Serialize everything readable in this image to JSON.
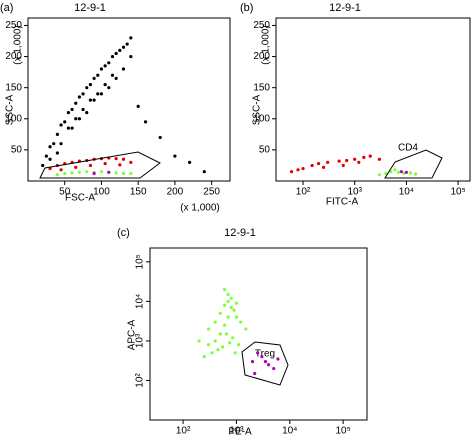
{
  "chart_data": [
    {
      "type": "scatter",
      "panel": "(a)",
      "title": "12-9-1",
      "xlabel": "FSC-A",
      "ylabel": "SSC-A",
      "xunit": "(x 1,000)",
      "yunit": "(x 1,000)",
      "xscale": "linear",
      "yscale": "linear",
      "xlim": [
        0,
        275
      ],
      "ylim": [
        0,
        262
      ],
      "xticks": [
        50,
        100,
        150,
        200,
        250
      ],
      "yticks": [
        50,
        100,
        150,
        200,
        250
      ],
      "series": [
        {
          "color": "#000000",
          "x": [
            20,
            25,
            30,
            35,
            40,
            45,
            50,
            55,
            60,
            65,
            70,
            75,
            80,
            85,
            90,
            95,
            100,
            105,
            110,
            115,
            120,
            125,
            130,
            135,
            140,
            60,
            70,
            80,
            90,
            100,
            110,
            120,
            45,
            55,
            65,
            75,
            85,
            95,
            105,
            115,
            150,
            160,
            180,
            200,
            220,
            240,
            30,
            40,
            130,
            140
          ],
          "values": [
            25,
            40,
            55,
            60,
            75,
            90,
            95,
            110,
            115,
            125,
            135,
            140,
            150,
            155,
            165,
            170,
            180,
            185,
            190,
            200,
            205,
            210,
            215,
            220,
            230,
            85,
            100,
            110,
            130,
            140,
            150,
            165,
            60,
            85,
            100,
            115,
            130,
            140,
            155,
            170,
            120,
            95,
            70,
            40,
            30,
            15,
            35,
            45,
            180,
            200
          ]
        },
        {
          "color": "#e00000",
          "x": [
            30,
            40,
            50,
            60,
            70,
            80,
            90,
            100,
            110,
            120,
            130,
            140,
            45,
            65,
            85,
            105,
            125
          ],
          "values": [
            20,
            25,
            28,
            30,
            32,
            33,
            35,
            36,
            37,
            36,
            35,
            30,
            18,
            22,
            25,
            28,
            26
          ]
        },
        {
          "color": "#7cff3a",
          "x": [
            40,
            50,
            60,
            70,
            80,
            90,
            100,
            110,
            120,
            130,
            140
          ],
          "values": [
            10,
            12,
            13,
            14,
            15,
            14,
            15,
            14,
            13,
            12,
            12
          ]
        },
        {
          "color": "#b000c0",
          "x": [
            90,
            110
          ],
          "values": [
            12,
            14
          ]
        }
      ]
    },
    {
      "type": "scatter",
      "panel": "(b)",
      "title": "12-9-1",
      "xlabel": "FITC-A",
      "ylabel": "SSC-A",
      "yunit": "(x 1,000)",
      "annotations": [
        "CD4"
      ],
      "xscale": "log",
      "yscale": "linear",
      "xlim": [
        30,
        170000
      ],
      "ylim": [
        0,
        262
      ],
      "xticks": [
        {
          "value": 100,
          "label": "10²"
        },
        {
          "value": 1000,
          "label": "10³"
        },
        {
          "value": 10000,
          "label": "10⁴"
        },
        {
          "value": 100000,
          "label": "10⁵"
        }
      ],
      "yticks": [
        50,
        100,
        150,
        200,
        250
      ],
      "series": [
        {
          "color": "#e00000",
          "x": [
            60,
            100,
            150,
            200,
            300,
            500,
            700,
            1000,
            1500,
            2000,
            3000,
            80,
            250,
            600,
            1200
          ],
          "values": [
            15,
            20,
            25,
            28,
            30,
            32,
            33,
            35,
            38,
            40,
            35,
            18,
            22,
            25,
            30
          ]
        },
        {
          "color": "#7cff3a",
          "x": [
            3000,
            4000,
            5000,
            7000,
            9000,
            12000,
            15000,
            6000
          ],
          "values": [
            10,
            12,
            15,
            14,
            12,
            13,
            11,
            18
          ]
        },
        {
          "color": "#b000c0",
          "x": [
            8000,
            10000
          ],
          "values": [
            15,
            14
          ]
        }
      ]
    },
    {
      "type": "scatter",
      "panel": "(c)",
      "title": "12-9-1",
      "xlabel": "PE-A",
      "ylabel": "APC-A",
      "annotations": [
        "Treg"
      ],
      "xscale": "log",
      "yscale": "log",
      "xlim": [
        24,
        280000
      ],
      "ylim": [
        10,
        224000
      ],
      "xticks": [
        {
          "value": 100,
          "label": "10²"
        },
        {
          "value": 1000,
          "label": "10³"
        },
        {
          "value": 10000,
          "label": "10⁴"
        },
        {
          "value": 100000,
          "label": "10⁵"
        }
      ],
      "yticks": [
        {
          "value": 100,
          "label": "10²"
        },
        {
          "value": 1000,
          "label": "10³"
        },
        {
          "value": 10000,
          "label": "10⁴"
        },
        {
          "value": 100000,
          "label": "10⁵"
        }
      ],
      "series": [
        {
          "color": "#7cff3a",
          "x": [
            300,
            400,
            500,
            600,
            700,
            800,
            900,
            1000,
            1200,
            1500,
            400,
            500,
            600,
            700,
            800,
            1000,
            300,
            350,
            450,
            550,
            650,
            750,
            850,
            950,
            1100,
            250,
            200,
            600,
            700,
            900
          ],
          "values": [
            2000,
            3000,
            5000,
            8000,
            10000,
            7000,
            6000,
            4000,
            3000,
            2000,
            1000,
            1500,
            2500,
            4000,
            12000,
            9000,
            800,
            500,
            600,
            700,
            1500,
            900,
            1200,
            500,
            800,
            400,
            1000,
            20000,
            15000,
            6000
          ]
        },
        {
          "color": "#b000c0",
          "x": [
            2000,
            3000,
            4000,
            5000,
            2500,
            3500,
            6000,
            2200
          ],
          "values": [
            300,
            400,
            250,
            200,
            500,
            300,
            350,
            150
          ]
        }
      ]
    }
  ]
}
